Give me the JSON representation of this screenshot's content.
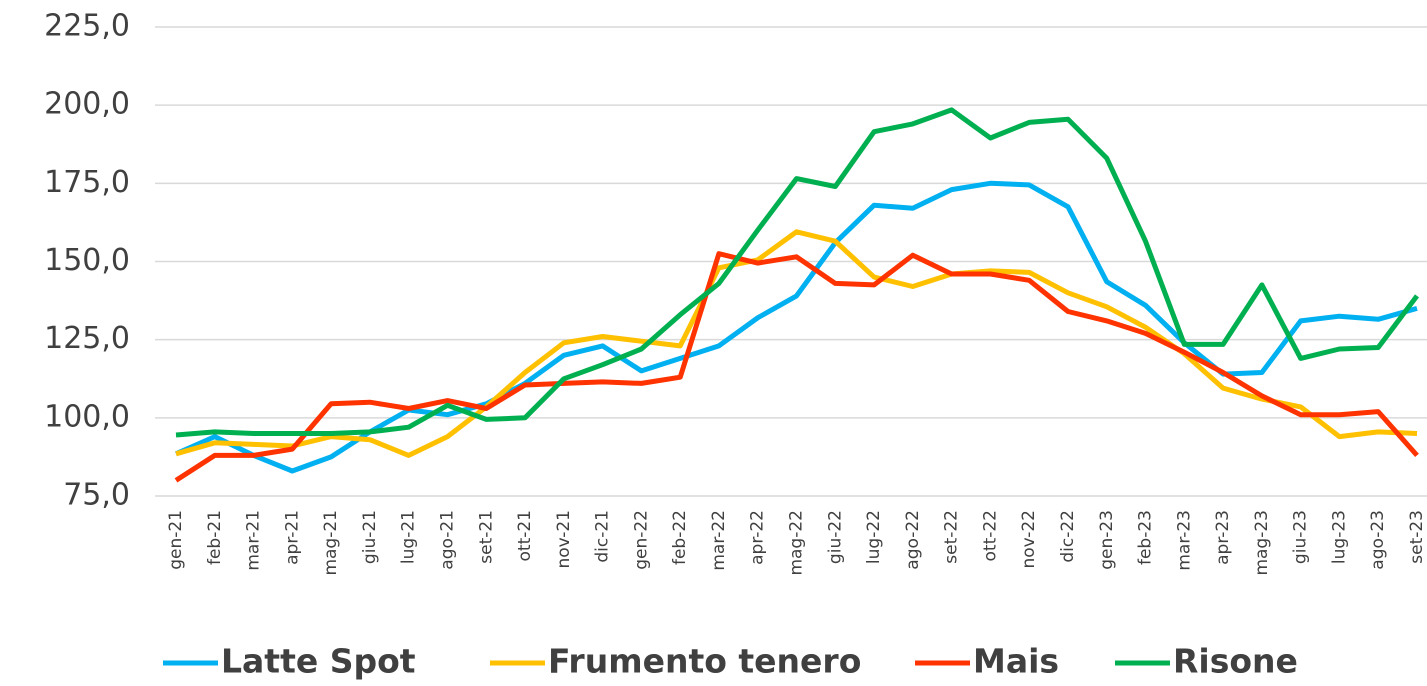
{
  "chart_data": {
    "type": "line",
    "categories": [
      "gen-21",
      "feb-21",
      "mar-21",
      "apr-21",
      "mag-21",
      "giu-21",
      "lug-21",
      "ago-21",
      "set-21",
      "ott-21",
      "nov-21",
      "dic-21",
      "gen-22",
      "feb-22",
      "mar-22",
      "apr-22",
      "mag-22",
      "giu-22",
      "lug-22",
      "ago-22",
      "set-22",
      "ott-22",
      "nov-22",
      "dic-22",
      "gen-23",
      "feb-23",
      "mar-23",
      "apr-23",
      "mag-23",
      "giu-23",
      "lug-23",
      "ago-23",
      "set-23"
    ],
    "series": [
      {
        "name": "Latte Spot",
        "color": "#00b0f0",
        "values": [
          88.5,
          94,
          88,
          83,
          87.5,
          95.5,
          102.5,
          101,
          104.5,
          111,
          120,
          123,
          115,
          119,
          123,
          132,
          139,
          156,
          168,
          167,
          173,
          175,
          174.5,
          167.5,
          143.5,
          136,
          124,
          114,
          114.5,
          131,
          132.5,
          131.5,
          135
        ]
      },
      {
        "name": "Frumento tenero",
        "color": "#ffc000",
        "values": [
          88.5,
          92,
          91.5,
          91,
          94,
          93,
          88,
          94,
          103.5,
          114.5,
          124,
          126,
          124.5,
          123,
          148,
          150.5,
          159.5,
          156.5,
          145,
          142,
          146,
          147,
          146.5,
          140,
          135.5,
          129,
          120.5,
          109.5,
          106,
          103.5,
          94,
          95.5,
          95
        ]
      },
      {
        "name": "Mais",
        "color": "#ff3300",
        "values": [
          80,
          88,
          88,
          90,
          104.5,
          105,
          103,
          105.5,
          103,
          110.5,
          111,
          111.5,
          111,
          113,
          152.5,
          149.5,
          151.5,
          143,
          142.5,
          152,
          146,
          146,
          144,
          134,
          131,
          127,
          121,
          114.5,
          107,
          101,
          101,
          102,
          88
        ]
      },
      {
        "name": "Risone",
        "color": "#00b050",
        "values": [
          94.5,
          95.5,
          95,
          95,
          95,
          95.5,
          97,
          104,
          99.5,
          100,
          112.5,
          117,
          122,
          133,
          143,
          160,
          176.5,
          174,
          191.5,
          194,
          198.5,
          189.5,
          194.5,
          195.5,
          183,
          156.5,
          123.5,
          123.5,
          142.5,
          119,
          122,
          122.5,
          139
        ]
      }
    ],
    "ylim": [
      75,
      225
    ],
    "yticks": [
      {
        "value": 75,
        "label": "75,0"
      },
      {
        "value": 100,
        "label": "100,0"
      },
      {
        "value": 125,
        "label": "125,0"
      },
      {
        "value": 150,
        "label": "150,0"
      },
      {
        "value": 175,
        "label": "175,0"
      },
      {
        "value": 200,
        "label": "200,0"
      },
      {
        "value": 225,
        "label": "225,0"
      }
    ],
    "grid": true,
    "legend": "bottom"
  }
}
